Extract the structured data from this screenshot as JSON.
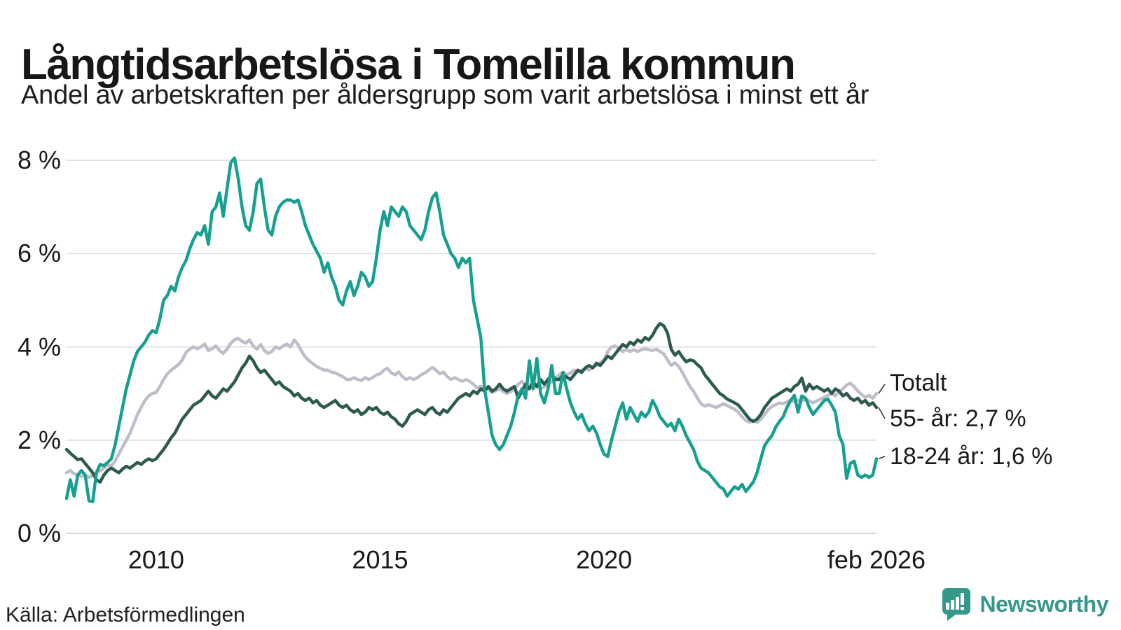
{
  "chart_data": {
    "type": "line",
    "title": "Långtidsarbetslösa i Tomelilla kommun",
    "subtitle": "Andel av arbetskraften per åldersgrupp som varit arbetslösa i minst ett år",
    "xlabel": "",
    "ylabel": "",
    "ylim": [
      0,
      8
    ],
    "grid": true,
    "grid_color": "#e1e1e5",
    "baseline_color": "#d7d7db",
    "connector_color": "#3a3a3a",
    "legend": "end-labels",
    "x_unit": "month",
    "x_start": "2008-01",
    "x_end": "2026-02",
    "y_ticks": [
      {
        "value": 8,
        "label": "8 %"
      },
      {
        "value": 6,
        "label": "6 %"
      },
      {
        "value": 4,
        "label": "4 %"
      },
      {
        "value": 2,
        "label": "2 %"
      },
      {
        "value": 0,
        "label": "0 %"
      }
    ],
    "x_ticks": [
      {
        "year": 2010,
        "label": "2010"
      },
      {
        "year": 2015,
        "label": "2015"
      },
      {
        "year": 2020,
        "label": "2020"
      },
      {
        "year": 2026.083,
        "label": "feb 2026"
      }
    ],
    "annotations": [
      {
        "text": "Totalt"
      },
      {
        "text": "55- år: 2,7 %"
      },
      {
        "text": "18-24 år: 1,6 %"
      }
    ],
    "series": [
      {
        "name": "Totalt",
        "color": "#c0bdcb",
        "last_value": 3.0,
        "values": [
          1.3,
          1.35,
          1.28,
          1.25,
          1.22,
          1.25,
          1.2,
          1.24,
          1.3,
          1.34,
          1.4,
          1.46,
          1.45,
          1.55,
          1.7,
          1.85,
          2.0,
          2.15,
          2.35,
          2.55,
          2.7,
          2.85,
          2.95,
          3.0,
          3.02,
          3.15,
          3.3,
          3.42,
          3.5,
          3.56,
          3.62,
          3.72,
          3.88,
          3.95,
          4.0,
          3.96,
          4.0,
          4.06,
          3.92,
          3.96,
          4.02,
          3.92,
          3.86,
          3.95,
          4.08,
          4.15,
          4.18,
          4.12,
          4.08,
          4.15,
          4.02,
          3.95,
          4.05,
          3.92,
          3.86,
          3.9,
          4.0,
          3.96,
          4.02,
          4.06,
          4.0,
          4.15,
          4.05,
          3.9,
          3.78,
          3.7,
          3.64,
          3.58,
          3.54,
          3.5,
          3.5,
          3.46,
          3.44,
          3.4,
          3.36,
          3.3,
          3.3,
          3.34,
          3.3,
          3.28,
          3.34,
          3.3,
          3.34,
          3.4,
          3.42,
          3.5,
          3.54,
          3.44,
          3.4,
          3.46,
          3.36,
          3.3,
          3.34,
          3.3,
          3.34,
          3.4,
          3.44,
          3.5,
          3.56,
          3.5,
          3.42,
          3.46,
          3.36,
          3.3,
          3.34,
          3.3,
          3.26,
          3.3,
          3.26,
          3.2,
          3.12,
          3.16,
          3.06,
          3.1,
          3.02,
          3.06,
          3.1,
          3.04,
          3.0,
          3.04,
          3.1,
          3.2,
          3.26,
          3.16,
          3.2,
          3.12,
          3.16,
          3.1,
          3.14,
          3.2,
          3.26,
          3.32,
          3.4,
          3.46,
          3.4,
          3.44,
          3.5,
          3.46,
          3.5,
          3.54,
          3.5,
          3.56,
          3.6,
          3.66,
          3.72,
          3.9,
          4.0,
          4.02,
          3.96,
          3.9,
          3.94,
          3.9,
          3.94,
          3.9,
          3.94,
          3.96,
          3.94,
          3.92,
          3.95,
          3.9,
          3.85,
          3.72,
          3.6,
          3.66,
          3.58,
          3.45,
          3.3,
          3.15,
          3.05,
          2.9,
          2.78,
          2.73,
          2.76,
          2.73,
          2.7,
          2.74,
          2.78,
          2.74,
          2.7,
          2.66,
          2.6,
          2.5,
          2.42,
          2.38,
          2.42,
          2.38,
          2.45,
          2.55,
          2.65,
          2.72,
          2.76,
          2.8,
          2.78,
          2.82,
          2.86,
          2.82,
          2.86,
          2.84,
          2.88,
          2.84,
          2.8,
          2.84,
          2.88,
          2.92,
          2.96,
          3.0,
          2.95,
          3.05,
          3.1,
          3.18,
          3.22,
          3.15,
          3.05,
          2.98,
          2.92,
          2.96,
          2.9,
          3.0
        ]
      },
      {
        "name": "55- år",
        "color": "#2d5a4f",
        "last_value": 2.7,
        "values": [
          1.8,
          1.72,
          1.65,
          1.58,
          1.6,
          1.5,
          1.4,
          1.3,
          1.15,
          1.1,
          1.25,
          1.35,
          1.4,
          1.35,
          1.3,
          1.38,
          1.44,
          1.4,
          1.46,
          1.52,
          1.48,
          1.55,
          1.6,
          1.56,
          1.6,
          1.7,
          1.8,
          1.92,
          2.05,
          2.15,
          2.3,
          2.45,
          2.55,
          2.65,
          2.75,
          2.8,
          2.85,
          2.95,
          3.05,
          2.95,
          2.9,
          3.0,
          3.1,
          3.05,
          3.15,
          3.25,
          3.4,
          3.55,
          3.65,
          3.8,
          3.7,
          3.55,
          3.45,
          3.5,
          3.4,
          3.3,
          3.2,
          3.25,
          3.15,
          3.1,
          3.05,
          2.95,
          3.0,
          2.9,
          2.85,
          2.9,
          2.8,
          2.85,
          2.75,
          2.7,
          2.75,
          2.8,
          2.85,
          2.75,
          2.7,
          2.75,
          2.65,
          2.6,
          2.65,
          2.55,
          2.6,
          2.7,
          2.65,
          2.7,
          2.6,
          2.55,
          2.6,
          2.5,
          2.45,
          2.35,
          2.3,
          2.4,
          2.55,
          2.6,
          2.65,
          2.6,
          2.55,
          2.65,
          2.7,
          2.6,
          2.55,
          2.65,
          2.6,
          2.7,
          2.8,
          2.9,
          2.95,
          3.0,
          2.95,
          3.05,
          3.0,
          3.1,
          3.05,
          3.15,
          3.05,
          3.1,
          3.2,
          3.1,
          3.05,
          3.1,
          3.15,
          2.9,
          3.05,
          3.2,
          3.1,
          3.25,
          3.15,
          3.3,
          3.2,
          3.3,
          3.4,
          3.3,
          3.3,
          3.4,
          3.35,
          3.3,
          3.4,
          3.5,
          3.45,
          3.55,
          3.6,
          3.55,
          3.65,
          3.6,
          3.7,
          3.8,
          3.75,
          3.85,
          3.95,
          4.05,
          4.0,
          4.1,
          4.05,
          4.15,
          4.1,
          4.2,
          4.15,
          4.25,
          4.4,
          4.5,
          4.45,
          4.3,
          3.95,
          3.82,
          3.9,
          3.78,
          3.68,
          3.72,
          3.7,
          3.62,
          3.55,
          3.4,
          3.3,
          3.2,
          3.1,
          3.0,
          2.95,
          2.88,
          2.84,
          2.8,
          2.75,
          2.65,
          2.55,
          2.45,
          2.4,
          2.45,
          2.55,
          2.7,
          2.8,
          2.9,
          2.95,
          3.0,
          3.05,
          3.1,
          3.05,
          3.15,
          3.2,
          3.33,
          3.05,
          3.2,
          3.1,
          3.15,
          3.1,
          3.05,
          3.1,
          3.0,
          3.1,
          3.05,
          2.95,
          3.0,
          2.9,
          2.85,
          2.9,
          2.8,
          2.85,
          2.75,
          2.8,
          2.7
        ]
      },
      {
        "name": "18-24 år",
        "color": "#17a08f",
        "last_value": 1.6,
        "values": [
          0.75,
          1.15,
          0.8,
          1.25,
          1.35,
          1.25,
          0.7,
          0.68,
          1.3,
          1.48,
          1.45,
          1.52,
          1.6,
          1.9,
          2.3,
          2.7,
          3.1,
          3.4,
          3.7,
          3.9,
          4.0,
          4.1,
          4.25,
          4.35,
          4.3,
          4.6,
          5.0,
          5.1,
          5.3,
          5.2,
          5.5,
          5.7,
          5.85,
          6.1,
          6.3,
          6.45,
          6.4,
          6.6,
          6.2,
          6.9,
          7.0,
          7.3,
          6.8,
          7.4,
          7.95,
          8.05,
          7.6,
          7.0,
          6.6,
          6.5,
          6.9,
          7.5,
          7.6,
          7.0,
          6.5,
          6.4,
          6.8,
          7.0,
          7.1,
          7.15,
          7.15,
          7.1,
          7.15,
          6.9,
          6.6,
          6.4,
          6.2,
          6.05,
          5.9,
          5.6,
          5.8,
          5.5,
          5.3,
          5.0,
          4.9,
          5.2,
          5.4,
          5.1,
          5.3,
          5.6,
          5.5,
          5.3,
          5.4,
          5.9,
          6.5,
          6.9,
          6.6,
          7.0,
          6.9,
          6.8,
          7.0,
          6.9,
          6.6,
          6.5,
          6.4,
          6.3,
          6.5,
          6.9,
          7.2,
          7.3,
          6.9,
          6.4,
          6.2,
          6.0,
          5.9,
          5.7,
          5.9,
          5.8,
          5.9,
          5.0,
          4.6,
          4.2,
          3.1,
          2.6,
          2.1,
          1.9,
          1.8,
          1.9,
          2.1,
          2.3,
          2.6,
          2.95,
          3.1,
          2.9,
          3.7,
          3.1,
          3.75,
          3.0,
          2.8,
          3.1,
          3.6,
          3.0,
          3.0,
          3.45,
          3.1,
          2.8,
          2.6,
          2.45,
          2.55,
          2.35,
          2.2,
          2.3,
          2.15,
          1.9,
          1.7,
          1.65,
          2.0,
          2.3,
          2.6,
          2.8,
          2.45,
          2.7,
          2.55,
          2.4,
          2.6,
          2.5,
          2.6,
          2.85,
          2.7,
          2.5,
          2.4,
          2.3,
          2.36,
          2.2,
          2.45,
          2.3,
          2.1,
          1.95,
          1.8,
          1.55,
          1.4,
          1.35,
          1.3,
          1.2,
          1.1,
          1.0,
          0.95,
          0.8,
          0.9,
          1.0,
          0.95,
          1.05,
          0.9,
          1.0,
          1.1,
          1.3,
          1.6,
          1.88,
          2.0,
          2.1,
          2.28,
          2.4,
          2.5,
          2.7,
          2.85,
          2.96,
          2.6,
          2.95,
          2.9,
          2.7,
          2.55,
          2.65,
          2.75,
          2.85,
          2.88,
          2.75,
          2.6,
          2.1,
          1.91,
          1.18,
          1.5,
          1.55,
          1.25,
          1.2,
          1.25,
          1.2,
          1.25,
          1.6
        ]
      }
    ]
  },
  "source": {
    "label": "Källa: Arbetsförmedlingen"
  },
  "brand": {
    "name": "Newsworthy",
    "color": "#36978b"
  }
}
